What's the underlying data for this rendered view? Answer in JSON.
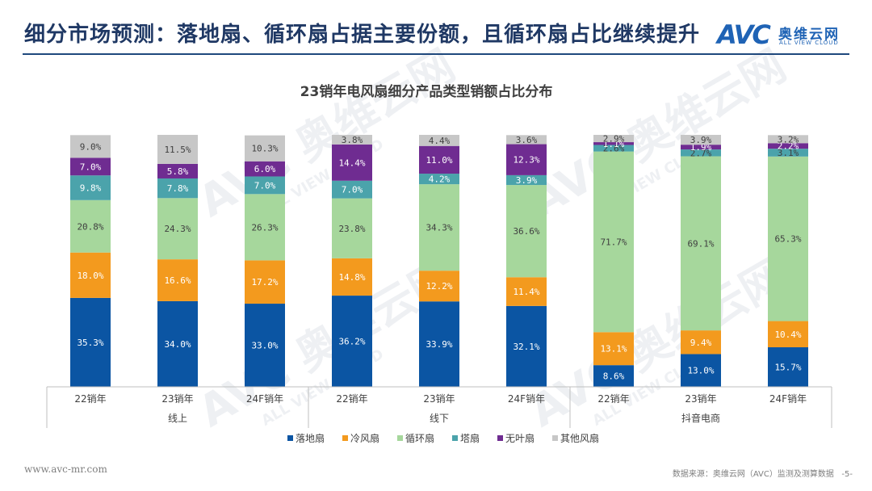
{
  "header": {
    "title": "细分市场预测：落地扇、循环扇占据主要份额，且循环扇占比继续提升"
  },
  "logo": {
    "mark": "AVC",
    "cn": "奥维云网",
    "en": "ALL VIEW CLOUD"
  },
  "footer": {
    "website": "www.avc-mr.com",
    "source": "数据来源：奥维云网（AVC）监测及测算数据",
    "page": "-5-"
  },
  "colors": {
    "落地扇": "#0b55a3",
    "冷风扇": "#f39a1e",
    "循环扇": "#a6d79c",
    "塔扇": "#4ba3ab",
    "无叶扇": "#6f2c91",
    "其他风扇": "#c7c7c7"
  },
  "chart_data": {
    "type": "bar",
    "stacked": true,
    "title": "23销年电风扇细分产品类型销额占比分布",
    "ylim": [
      0,
      100
    ],
    "value_suffix": "%",
    "groups": [
      {
        "label": "线上",
        "categories": [
          "22销年",
          "23销年",
          "24F销年"
        ]
      },
      {
        "label": "线下",
        "categories": [
          "22销年",
          "23销年",
          "24F销年"
        ]
      },
      {
        "label": "抖音电商",
        "categories": [
          "22销年",
          "23销年",
          "24F销年"
        ]
      }
    ],
    "series": [
      {
        "name": "落地扇",
        "values": [
          35.3,
          34.0,
          33.0,
          36.2,
          33.9,
          32.1,
          8.6,
          13.0,
          15.7
        ]
      },
      {
        "name": "冷风扇",
        "values": [
          18.0,
          16.6,
          17.2,
          14.8,
          12.2,
          11.4,
          13.1,
          9.4,
          10.4
        ]
      },
      {
        "name": "循环扇",
        "values": [
          20.8,
          24.3,
          26.3,
          23.8,
          34.3,
          36.6,
          71.7,
          69.1,
          65.3
        ]
      },
      {
        "name": "塔扇",
        "values": [
          9.8,
          7.8,
          7.0,
          7.0,
          4.2,
          3.9,
          2.6,
          2.7,
          3.1
        ]
      },
      {
        "name": "无叶扇",
        "values": [
          7.0,
          5.8,
          6.0,
          14.4,
          11.0,
          12.3,
          1.1,
          1.9,
          2.2
        ]
      },
      {
        "name": "其他风扇",
        "values": [
          9.0,
          11.5,
          10.3,
          3.8,
          4.4,
          3.6,
          2.9,
          3.9,
          3.2
        ]
      }
    ],
    "legend_position": "bottom"
  }
}
